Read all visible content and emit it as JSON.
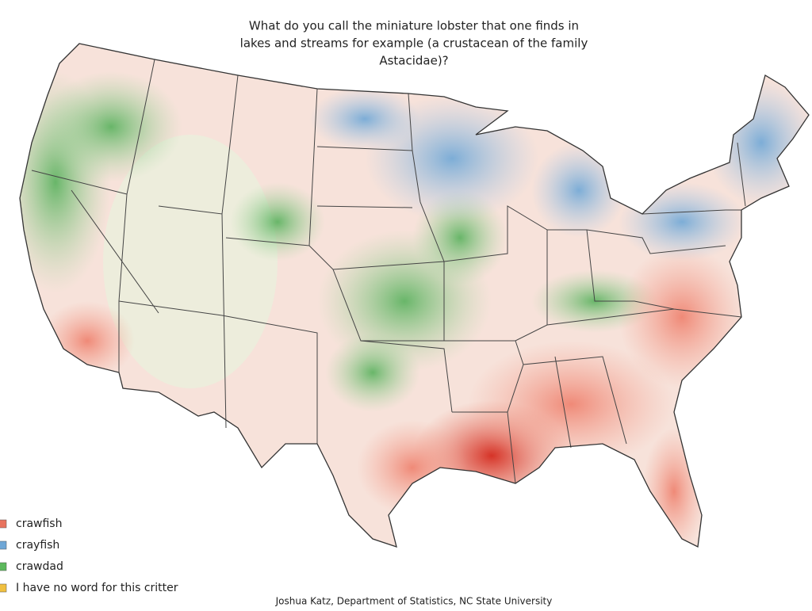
{
  "title_lines": [
    "What do you call the miniature lobster that one finds in",
    "lakes and streams for example (a crustacean of the family",
    "Astacidae)?"
  ],
  "legend": [
    {
      "name": "crawfish",
      "color": "#e8735e"
    },
    {
      "name": "crayfish",
      "color": "#6fa7d6"
    },
    {
      "name": "crawdad",
      "color": "#5cb85c"
    },
    {
      "name": "I have no word for this critter",
      "color": "#f0c040"
    }
  ],
  "credit": "Joshua Katz, Department of Statistics, NC State University"
}
